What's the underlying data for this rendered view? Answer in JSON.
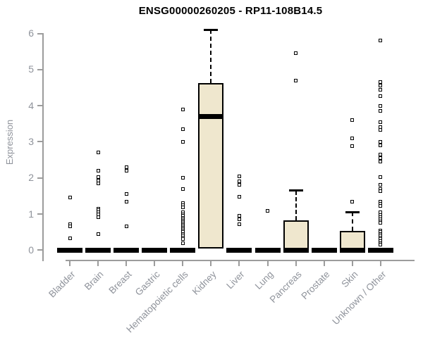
{
  "chart_data": {
    "type": "boxplot",
    "title": "ENSG00000260205 - RP11-108B14.5",
    "ylabel": "Expression",
    "xlabel": "",
    "ylim": [
      0,
      6.3
    ],
    "yticks": [
      "0",
      "1",
      "2",
      "3",
      "4",
      "5",
      "6"
    ],
    "grid": false,
    "legend": null,
    "categories": [
      "Bladder",
      "Brain",
      "Breast",
      "Gastric",
      "Hematopoietic cells",
      "Kidney",
      "Liver",
      "Lung",
      "Pancreas",
      "Prostate",
      "Skin",
      "Unknown / Other"
    ],
    "boxes": [
      {
        "category": "Bladder",
        "q1": 0,
        "median": 0,
        "q3": 0,
        "whisker_low": 0,
        "whisker_high": 0,
        "outliers": [
          1.45,
          0.72,
          0.66,
          0.32
        ]
      },
      {
        "category": "Brain",
        "q1": 0,
        "median": 0,
        "q3": 0,
        "whisker_low": 0,
        "whisker_high": 0,
        "outliers": [
          2.7,
          2.2,
          2.02,
          1.93,
          1.85,
          1.15,
          1.1,
          1.05,
          1.0,
          0.92,
          0.45
        ]
      },
      {
        "category": "Breast",
        "q1": 0,
        "median": 0,
        "q3": 0,
        "whisker_low": 0,
        "whisker_high": 0,
        "outliers": [
          2.3,
          2.2,
          1.55,
          1.35,
          0.65
        ]
      },
      {
        "category": "Gastric",
        "q1": 0,
        "median": 0,
        "q3": 0,
        "whisker_low": 0,
        "whisker_high": 0,
        "outliers": []
      },
      {
        "category": "Hematopoietic cells",
        "q1": 0,
        "median": 0,
        "q3": 0,
        "whisker_low": 0,
        "whisker_high": 0,
        "outliers": [
          3.9,
          3.35,
          3.0,
          2.0,
          1.7,
          1.3,
          1.24,
          1.18,
          1.05,
          1.0,
          0.95,
          0.9,
          0.86,
          0.82,
          0.78,
          0.74,
          0.7,
          0.66,
          0.62,
          0.58,
          0.54,
          0.5,
          0.45,
          0.4,
          0.35,
          0.3,
          0.2
        ]
      },
      {
        "category": "Kidney",
        "q1": 0.05,
        "median": 3.7,
        "q3": 4.63,
        "whisker_low": 0.05,
        "whisker_high": 6.1,
        "outliers": []
      },
      {
        "category": "Liver",
        "q1": 0,
        "median": 0,
        "q3": 0,
        "whisker_low": 0,
        "whisker_high": 0,
        "outliers": [
          2.05,
          1.9,
          1.8,
          1.48,
          0.95,
          0.85,
          0.72
        ]
      },
      {
        "category": "Lung",
        "q1": 0,
        "median": 0,
        "q3": 0,
        "whisker_low": 0,
        "whisker_high": 0,
        "outliers": [
          1.08
        ]
      },
      {
        "category": "Pancreas",
        "q1": 0,
        "median": 0,
        "q3": 0.82,
        "whisker_low": 0,
        "whisker_high": 1.65,
        "outliers": [
          5.45,
          4.7
        ]
      },
      {
        "category": "Prostate",
        "q1": 0,
        "median": 0,
        "q3": 0,
        "whisker_low": 0,
        "whisker_high": 0,
        "outliers": []
      },
      {
        "category": "Skin",
        "q1": 0,
        "median": 0,
        "q3": 0.53,
        "whisker_low": 0,
        "whisker_high": 1.05,
        "outliers": [
          3.6,
          3.1,
          2.88,
          1.35
        ]
      },
      {
        "category": "Unknown / Other",
        "q1": 0,
        "median": 0,
        "q3": 0,
        "whisker_low": 0,
        "whisker_high": 0,
        "outliers": [
          5.8,
          4.65,
          4.55,
          4.45,
          4.27,
          4.0,
          3.85,
          3.55,
          3.4,
          3.32,
          3.0,
          2.9,
          2.65,
          2.55,
          2.45,
          2.02,
          1.8,
          1.7,
          1.64,
          1.35,
          1.28,
          1.22,
          1.05,
          0.98,
          0.92,
          0.86,
          0.8,
          0.75,
          0.55,
          0.5,
          0.45,
          0.4,
          0.35,
          0.3,
          0.25,
          0.2,
          0.15
        ]
      }
    ],
    "colors": {
      "box_fill": "#efe7ce",
      "box_border": "#000000",
      "median": "#000000",
      "outlier": "#000000",
      "axis_line": "#9c9c9c",
      "tick_label": "#8f939b",
      "title": "#000000"
    }
  }
}
